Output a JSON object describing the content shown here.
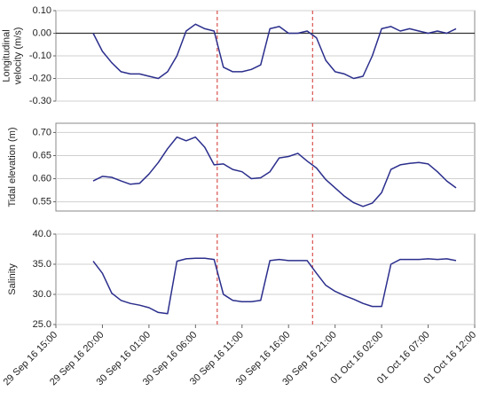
{
  "chart_data": [
    {
      "type": "line",
      "ylabel": [
        "Longitudinal",
        "velocity (m/s)"
      ],
      "x": [
        "2016-09-29 19:00",
        "2016-09-29 20:00",
        "2016-09-29 21:00",
        "2016-09-29 22:00",
        "2016-09-29 23:00",
        "2016-09-30 00:00",
        "2016-09-30 01:00",
        "2016-09-30 02:00",
        "2016-09-30 03:00",
        "2016-09-30 04:00",
        "2016-09-30 05:00",
        "2016-09-30 06:00",
        "2016-09-30 07:00",
        "2016-09-30 08:00",
        "2016-09-30 09:00",
        "2016-09-30 10:00",
        "2016-09-30 11:00",
        "2016-09-30 12:00",
        "2016-09-30 13:00",
        "2016-09-30 14:00",
        "2016-09-30 15:00",
        "2016-09-30 16:00",
        "2016-09-30 17:00",
        "2016-09-30 18:00",
        "2016-09-30 19:00",
        "2016-09-30 20:00",
        "2016-09-30 21:00",
        "2016-09-30 22:00",
        "2016-09-30 23:00",
        "2016-10-01 00:00",
        "2016-10-01 01:00",
        "2016-10-01 02:00",
        "2016-10-01 03:00",
        "2016-10-01 04:00",
        "2016-10-01 05:00",
        "2016-10-01 06:00",
        "2016-10-01 07:00",
        "2016-10-01 08:00",
        "2016-10-01 09:00",
        "2016-10-01 10:00"
      ],
      "values": [
        0.0,
        -0.08,
        -0.13,
        -0.17,
        -0.18,
        -0.18,
        -0.19,
        -0.2,
        -0.17,
        -0.1,
        0.01,
        0.04,
        0.02,
        0.01,
        -0.15,
        -0.17,
        -0.17,
        -0.16,
        -0.14,
        0.02,
        0.03,
        0.0,
        0.0,
        0.01,
        -0.02,
        -0.12,
        -0.17,
        -0.18,
        -0.2,
        -0.19,
        -0.1,
        0.02,
        0.03,
        0.01,
        0.02,
        0.01,
        0.0,
        0.01,
        0.0,
        0.02
      ],
      "color": "#2b2e8c",
      "xlim": [
        "2016-09-29 15:00",
        "2016-10-01 12:00"
      ],
      "ylim": [
        -0.3,
        0.1
      ],
      "yticks": [
        {
          "value": 0.1,
          "label": "0.10"
        },
        {
          "value": 0,
          "label": "0.00"
        },
        {
          "value": -0.1,
          "label": "-0.10"
        },
        {
          "value": -0.2,
          "label": "-0.20"
        },
        {
          "value": -0.3,
          "label": "-0.30"
        }
      ],
      "grid": true,
      "refline": 0,
      "vlines": [
        "2016-09-30 08:20",
        "2016-09-30 18:35"
      ],
      "vline_color": "#d9534f"
    },
    {
      "type": "line",
      "ylabel": [
        "Tidal elevation (m)"
      ],
      "x": [
        "2016-09-29 19:00",
        "2016-09-29 20:00",
        "2016-09-29 21:00",
        "2016-09-29 22:00",
        "2016-09-29 23:00",
        "2016-09-30 00:00",
        "2016-09-30 01:00",
        "2016-09-30 02:00",
        "2016-09-30 03:00",
        "2016-09-30 04:00",
        "2016-09-30 05:00",
        "2016-09-30 06:00",
        "2016-09-30 07:00",
        "2016-09-30 08:00",
        "2016-09-30 09:00",
        "2016-09-30 10:00",
        "2016-09-30 11:00",
        "2016-09-30 12:00",
        "2016-09-30 13:00",
        "2016-09-30 14:00",
        "2016-09-30 15:00",
        "2016-09-30 16:00",
        "2016-09-30 17:00",
        "2016-09-30 18:00",
        "2016-09-30 19:00",
        "2016-09-30 20:00",
        "2016-09-30 21:00",
        "2016-09-30 22:00",
        "2016-09-30 23:00",
        "2016-10-01 00:00",
        "2016-10-01 01:00",
        "2016-10-01 02:00",
        "2016-10-01 03:00",
        "2016-10-01 04:00",
        "2016-10-01 05:00",
        "2016-10-01 06:00",
        "2016-10-01 07:00",
        "2016-10-01 08:00",
        "2016-10-01 09:00",
        "2016-10-01 10:00"
      ],
      "values": [
        0.595,
        0.605,
        0.603,
        0.595,
        0.588,
        0.59,
        0.61,
        0.635,
        0.665,
        0.69,
        0.682,
        0.69,
        0.668,
        0.63,
        0.632,
        0.62,
        0.615,
        0.6,
        0.602,
        0.615,
        0.645,
        0.648,
        0.655,
        0.638,
        0.623,
        0.598,
        0.58,
        0.562,
        0.548,
        0.54,
        0.547,
        0.57,
        0.62,
        0.63,
        0.633,
        0.635,
        0.632,
        0.615,
        0.595,
        0.58
      ],
      "color": "#2b2e8c",
      "xlim": [
        "2016-09-29 15:00",
        "2016-10-01 12:00"
      ],
      "ylim": [
        0.53,
        0.72
      ],
      "yticks": [
        {
          "value": 0.7,
          "label": "0.70"
        },
        0.65,
        {
          "value": 0.6,
          "label": "0.60"
        },
        0.55
      ],
      "grid": true,
      "vlines": [
        "2016-09-30 08:20",
        "2016-09-30 18:35"
      ],
      "vline_color": "#d9534f"
    },
    {
      "type": "line",
      "ylabel": [
        "Salinity"
      ],
      "x": [
        "2016-09-29 19:00",
        "2016-09-29 20:00",
        "2016-09-29 21:00",
        "2016-09-29 22:00",
        "2016-09-29 23:00",
        "2016-09-30 00:00",
        "2016-09-30 01:00",
        "2016-09-30 02:00",
        "2016-09-30 03:00",
        "2016-09-30 04:00",
        "2016-09-30 05:00",
        "2016-09-30 06:00",
        "2016-09-30 07:00",
        "2016-09-30 08:00",
        "2016-09-30 09:00",
        "2016-09-30 10:00",
        "2016-09-30 11:00",
        "2016-09-30 12:00",
        "2016-09-30 13:00",
        "2016-09-30 14:00",
        "2016-09-30 15:00",
        "2016-09-30 16:00",
        "2016-09-30 17:00",
        "2016-09-30 18:00",
        "2016-09-30 19:00",
        "2016-09-30 20:00",
        "2016-09-30 21:00",
        "2016-09-30 22:00",
        "2016-09-30 23:00",
        "2016-10-01 00:00",
        "2016-10-01 01:00",
        "2016-10-01 02:00",
        "2016-10-01 03:00",
        "2016-10-01 04:00",
        "2016-10-01 05:00",
        "2016-10-01 06:00",
        "2016-10-01 07:00",
        "2016-10-01 08:00",
        "2016-10-01 09:00",
        "2016-10-01 10:00"
      ],
      "values": [
        35.5,
        33.5,
        30.2,
        29.0,
        28.5,
        28.2,
        27.8,
        27.0,
        26.8,
        35.5,
        35.9,
        36.0,
        36.0,
        35.8,
        30.0,
        29.0,
        28.8,
        28.8,
        29.0,
        35.6,
        35.8,
        35.6,
        35.6,
        35.6,
        33.5,
        31.5,
        30.5,
        29.8,
        29.2,
        28.5,
        28.0,
        28.0,
        35.0,
        35.8,
        35.8,
        35.8,
        35.9,
        35.8,
        35.9,
        35.6
      ],
      "color": "#2b2e8c",
      "xlim": [
        "2016-09-29 15:00",
        "2016-10-01 12:00"
      ],
      "xticks": [
        {
          "value": "2016-09-29 15:00",
          "label": "29 Sep 16 15:00"
        },
        {
          "value": "2016-09-29 20:00",
          "label": "29 Sep 16 20:00"
        },
        {
          "value": "2016-09-30 01:00",
          "label": "30 Sep 16 01:00"
        },
        {
          "value": "2016-09-30 06:00",
          "label": "30 Sep 16 06:00"
        },
        {
          "value": "2016-09-30 11:00",
          "label": "30 Sep 16 11:00"
        },
        {
          "value": "2016-09-30 16:00",
          "label": "30 Sep 16 16:00"
        },
        {
          "value": "2016-09-30 21:00",
          "label": "30 Sep 16 21:00"
        },
        {
          "value": "2016-10-01 02:00",
          "label": "01 Oct 16 02:00"
        },
        {
          "value": "2016-10-01 07:00",
          "label": "01 Oct 16 07:00"
        },
        {
          "value": "2016-10-01 12:00",
          "label": "01 Oct 16 12:00"
        }
      ],
      "ylim": [
        25,
        40
      ],
      "yticks": [
        {
          "value": 40,
          "label": "40.0"
        },
        {
          "value": 35,
          "label": "35.0"
        },
        {
          "value": 30,
          "label": "30.0"
        },
        {
          "value": 25,
          "label": "25.0"
        }
      ],
      "grid": true,
      "vlines": [
        "2016-09-30 08:20",
        "2016-09-30 18:35"
      ],
      "vline_color": "#d9534f"
    }
  ]
}
